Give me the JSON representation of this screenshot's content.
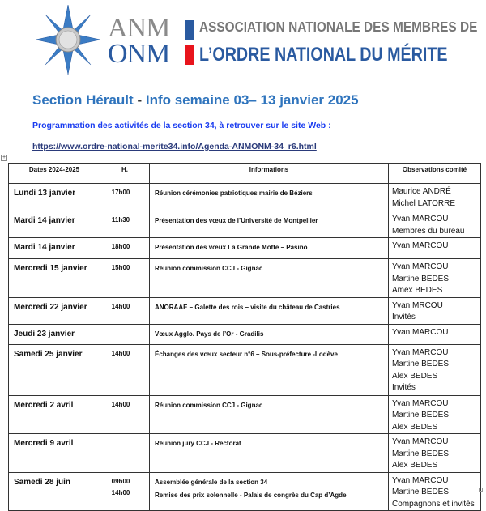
{
  "logo": {
    "anm": "ANM",
    "onm": "ONM",
    "line1": "ASSOCIATION NATIONALE DES MEMBRES DE",
    "line2": "L’ORDRE NATIONAL DU MÉRITE",
    "colors": {
      "blue": "#2a5aa0",
      "grey": "#8a8a8a",
      "red": "#e8141c"
    }
  },
  "title": {
    "part1": "Section Hérault",
    "dash": "-",
    "part2": "Info semaine 03– 13 janvier 2025"
  },
  "subtitle": "Programmation des activités de la section 34, à retrouver sur le site Web :",
  "link": "https://www.ordre-national-merite34.info/Agenda-ANMONM-34_r6.html",
  "table": {
    "headers": [
      "Dates 2024-2025",
      "H.",
      "Informations",
      "Observations comité"
    ],
    "rows": [
      {
        "date": "Lundi 13 janvier",
        "hours": [
          "17h00"
        ],
        "info": [
          "Réunion cérémonies patriotiques mairie de Béziers"
        ],
        "obs": [
          "Maurice ANDRÉ",
          "Michel LATORRE"
        ]
      },
      {
        "date": "Mardi 14 janvier",
        "hours": [
          "11h30"
        ],
        "info": [
          "Présentation des vœux de l’Université de Montpellier"
        ],
        "obs": [
          "Yvan MARCOU",
          "Membres du bureau"
        ]
      },
      {
        "date": "Mardi 14 janvier",
        "hours": [
          "18h00"
        ],
        "info": [
          "Présentation des vœux La Grande Motte – Pasino"
        ],
        "obs": [
          "Yvan MARCOU"
        ]
      },
      {
        "date": "Mercredi 15 janvier",
        "hours": [
          "15h00"
        ],
        "info": [
          "Réunion commission CCJ - Gignac"
        ],
        "obs": [
          "Yvan MARCOU",
          "Martine BEDES",
          "Amex BEDES"
        ]
      },
      {
        "date": "Mercredi 22 janvier",
        "hours": [
          "14h00"
        ],
        "info": [
          "ANORAAE – Galette des rois – visite du château de Castries"
        ],
        "obs": [
          "Yvan MRCOU",
          "Invités"
        ]
      },
      {
        "date": "Jeudi 23 janvier",
        "hours": [],
        "info": [
          "Vœux Agglo. Pays de l’Or - Gradilis"
        ],
        "obs": [
          "Yvan MARCOU"
        ]
      },
      {
        "date": "Samedi 25 janvier",
        "hours": [
          "14h00"
        ],
        "info": [
          "Échanges des vœux secteur n°6 – Sous-préfecture -Lodève"
        ],
        "obs": [
          "Yvan MARCOU",
          "Martine BEDES",
          "Alex BEDES",
          "Invités"
        ]
      },
      {
        "date": "Mercredi 2 avril",
        "hours": [
          "14h00"
        ],
        "info": [
          "Réunion commission CCJ - Gignac"
        ],
        "obs": [
          "Yvan MARCOU",
          "Martine BEDES",
          "Alex BEDES"
        ]
      },
      {
        "date": "Mercredi 9 avril",
        "hours": [],
        "info": [
          "Réunion jury CCJ - Rectorat"
        ],
        "obs": [
          "Yvan MARCOU",
          "Martine BEDES",
          "Alex BEDES"
        ]
      },
      {
        "date": "Samedi 28 juin",
        "hours": [
          "09h00",
          "14h00"
        ],
        "info": [
          "Assemblée générale de la section 34",
          "Remise des prix solennelle - Palais de congrès du Cap d’Agde"
        ],
        "obs": [
          "Yvan MARCOU",
          "Martine BEDES",
          "Compagnons et invités"
        ]
      }
    ]
  }
}
